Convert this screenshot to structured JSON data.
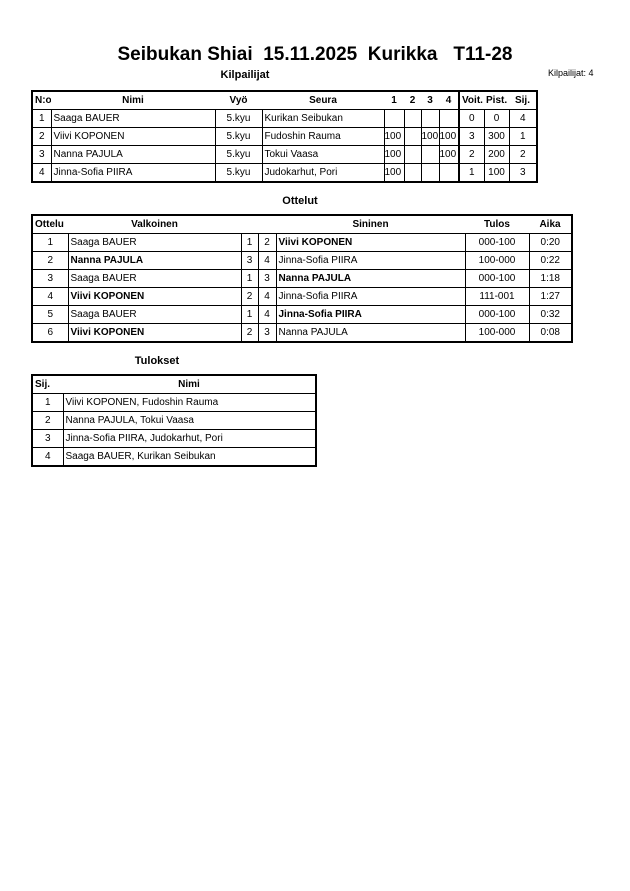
{
  "header": {
    "title": "Seibukan Shiai  15.11.2025  Kurikka   T11-28",
    "competitors_label": "Kilpailijat",
    "competitor_count": "Kilpailijat: 4"
  },
  "competitors": {
    "columns": [
      "N:o",
      "Nimi",
      "Vyö",
      "Seura",
      "1",
      "2",
      "3",
      "4",
      "Voit.",
      "Pist.",
      "Sij."
    ],
    "rows": [
      {
        "no": "1",
        "name": "Saaga BAUER",
        "belt": "5.kyu",
        "club": "Kurikan Seibukan",
        "p1": "",
        "p2": "",
        "p3": "",
        "p4": "",
        "wins": "0",
        "points": "0",
        "rank": "4"
      },
      {
        "no": "2",
        "name": "Viivi KOPONEN",
        "belt": "5.kyu",
        "club": "Fudoshin Rauma",
        "p1": "100",
        "p2": "",
        "p3": "100",
        "p4": "100",
        "wins": "3",
        "points": "300",
        "rank": "1"
      },
      {
        "no": "3",
        "name": "Nanna PAJULA",
        "belt": "5.kyu",
        "club": "Tokui Vaasa",
        "p1": "100",
        "p2": "",
        "p3": "",
        "p4": "100",
        "wins": "2",
        "points": "200",
        "rank": "2"
      },
      {
        "no": "4",
        "name": "Jinna-Sofia PIIRA",
        "belt": "5.kyu",
        "club": "Judokarhut, Pori",
        "p1": "100",
        "p2": "",
        "p3": "",
        "p4": "",
        "wins": "1",
        "points": "100",
        "rank": "3"
      }
    ]
  },
  "matches": {
    "title": "Ottelut",
    "columns": [
      "Ottelu",
      "Valkoinen",
      "Sininen",
      "Tulos",
      "Aika"
    ],
    "rows": [
      {
        "no": "1",
        "white": "Saaga BAUER",
        "wn": "1",
        "bn": "2",
        "blue": "Viivi KOPONEN",
        "result": "000-100",
        "time": "0:20",
        "winner": "blue"
      },
      {
        "no": "2",
        "white": "Nanna PAJULA",
        "wn": "3",
        "bn": "4",
        "blue": "Jinna-Sofia PIIRA",
        "result": "100-000",
        "time": "0:22",
        "winner": "white"
      },
      {
        "no": "3",
        "white": "Saaga BAUER",
        "wn": "1",
        "bn": "3",
        "blue": "Nanna PAJULA",
        "result": "000-100",
        "time": "1:18",
        "winner": "blue"
      },
      {
        "no": "4",
        "white": "Viivi KOPONEN",
        "wn": "2",
        "bn": "4",
        "blue": "Jinna-Sofia PIIRA",
        "result": "111-001",
        "time": "1:27",
        "winner": "white"
      },
      {
        "no": "5",
        "white": "Saaga BAUER",
        "wn": "1",
        "bn": "4",
        "blue": "Jinna-Sofia PIIRA",
        "result": "000-100",
        "time": "0:32",
        "winner": "blue"
      },
      {
        "no": "6",
        "white": "Viivi KOPONEN",
        "wn": "2",
        "bn": "3",
        "blue": "Nanna PAJULA",
        "result": "100-000",
        "time": "0:08",
        "winner": "white"
      }
    ]
  },
  "results": {
    "title": "Tulokset",
    "columns": [
      "Sij.",
      "Nimi"
    ],
    "rows": [
      {
        "rank": "1",
        "name": "Viivi KOPONEN, Fudoshin Rauma"
      },
      {
        "rank": "2",
        "name": "Nanna PAJULA, Tokui Vaasa"
      },
      {
        "rank": "3",
        "name": "Jinna-Sofia PIIRA, Judokarhut, Pori"
      },
      {
        "rank": "4",
        "name": "Saaga BAUER, Kurikan Seibukan"
      }
    ]
  }
}
